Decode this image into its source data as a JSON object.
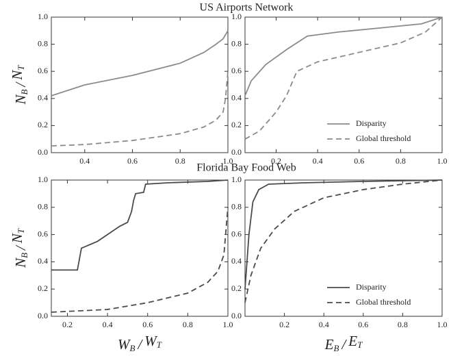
{
  "chart_data": [
    {
      "type": "line",
      "title": "US Airports Network",
      "ylabel": [
        "N",
        "B",
        "/",
        "N",
        "T"
      ],
      "xlim": [
        0.26,
        1.0
      ],
      "ylim": [
        0,
        1
      ],
      "xticks": [
        0.4,
        0.6,
        0.8,
        {
          "value": 1,
          "label": "1.0"
        }
      ],
      "yticks": [
        {
          "value": 0,
          "label": "0.0"
        },
        0.2,
        0.4,
        0.6,
        0.8,
        {
          "value": 1,
          "label": "1.0"
        }
      ],
      "series": [
        {
          "color": "#8a8a8a",
          "linestyle": "solid",
          "x": [
            0.26,
            0.4,
            0.6,
            0.8,
            0.9,
            0.95,
            0.98,
            1.0
          ],
          "values": [
            0.42,
            0.5,
            0.57,
            0.66,
            0.74,
            0.8,
            0.84,
            0.9
          ]
        },
        {
          "color": "#8a8a8a",
          "linestyle": "dashed",
          "x": [
            0.26,
            0.4,
            0.6,
            0.8,
            0.9,
            0.95,
            0.98,
            0.99,
            1.0
          ],
          "values": [
            0.05,
            0.06,
            0.09,
            0.14,
            0.19,
            0.24,
            0.3,
            0.4,
            0.6
          ]
        }
      ]
    },
    {
      "type": "line",
      "xlim": [
        0.05,
        1.0
      ],
      "ylim": [
        0,
        1
      ],
      "xticks": [
        0.2,
        0.4,
        0.6,
        0.8,
        {
          "value": 1,
          "label": "1.0"
        }
      ],
      "yticks": [
        {
          "value": 0,
          "label": "0.0"
        },
        0.2,
        0.4,
        0.6,
        0.8,
        {
          "value": 1,
          "label": "1.0"
        }
      ],
      "legend": "lower right",
      "series": [
        {
          "name": "Disparity",
          "color": "#8a8a8a",
          "linestyle": "solid",
          "x": [
            0.05,
            0.08,
            0.15,
            0.25,
            0.35,
            0.5,
            0.7,
            0.9,
            1.0
          ],
          "values": [
            0.42,
            0.53,
            0.65,
            0.76,
            0.86,
            0.89,
            0.92,
            0.95,
            1.0
          ]
        },
        {
          "name": "Global threshold",
          "color": "#8a8a8a",
          "linestyle": "dashed",
          "x": [
            0.05,
            0.12,
            0.2,
            0.25,
            0.3,
            0.4,
            0.6,
            0.8,
            0.92,
            1.0
          ],
          "values": [
            0.1,
            0.16,
            0.3,
            0.42,
            0.6,
            0.67,
            0.74,
            0.81,
            0.89,
            1.0
          ]
        }
      ]
    },
    {
      "type": "line",
      "title": "Florida Bay Food Web",
      "ylabel": [
        "N",
        "B",
        "/",
        "N",
        "T"
      ],
      "xlabel": [
        "W",
        "B",
        "/",
        "W",
        "T"
      ],
      "xlim": [
        0.12,
        1.0
      ],
      "ylim": [
        0,
        1
      ],
      "xticks": [
        0.2,
        0.4,
        0.6,
        0.8,
        {
          "value": 1,
          "label": "1.0"
        }
      ],
      "yticks": [
        {
          "value": 0,
          "label": "0.0"
        },
        0.2,
        0.4,
        0.6,
        0.8,
        {
          "value": 1,
          "label": "1.0"
        }
      ],
      "series": [
        {
          "color": "#4a4a4a",
          "linestyle": "solid",
          "x": [
            0.12,
            0.25,
            0.26,
            0.27,
            0.35,
            0.42,
            0.46,
            0.5,
            0.52,
            0.53,
            0.54,
            0.58,
            0.59,
            0.7,
            0.9,
            1.0
          ],
          "values": [
            0.34,
            0.34,
            0.42,
            0.5,
            0.55,
            0.62,
            0.66,
            0.69,
            0.77,
            0.85,
            0.9,
            0.91,
            0.97,
            0.98,
            0.99,
            1.0
          ]
        },
        {
          "color": "#4a4a4a",
          "linestyle": "dashed",
          "x": [
            0.12,
            0.4,
            0.6,
            0.8,
            0.9,
            0.95,
            0.98,
            1.0
          ],
          "values": [
            0.03,
            0.05,
            0.1,
            0.17,
            0.25,
            0.33,
            0.45,
            0.8
          ]
        }
      ]
    },
    {
      "type": "line",
      "xlabel": [
        "E",
        "B",
        "/",
        "E",
        "T"
      ],
      "xlim": [
        0,
        1.0
      ],
      "ylim": [
        0,
        1
      ],
      "xticks": [
        0.2,
        0.4,
        0.6,
        0.8,
        {
          "value": 1,
          "label": "1.0"
        }
      ],
      "yticks": [
        {
          "value": 0,
          "label": "0.0"
        },
        0.2,
        0.4,
        0.6,
        0.8,
        {
          "value": 1,
          "label": "1.0"
        }
      ],
      "legend": "lower right",
      "series": [
        {
          "name": "Disparity",
          "color": "#4a4a4a",
          "linestyle": "solid",
          "x": [
            0,
            0.02,
            0.04,
            0.07,
            0.12,
            0.3,
            0.6,
            1.0
          ],
          "values": [
            0.2,
            0.6,
            0.84,
            0.93,
            0.97,
            0.98,
            0.99,
            1.0
          ]
        },
        {
          "name": "Global threshold",
          "color": "#4a4a4a",
          "linestyle": "dashed",
          "x": [
            0,
            0.03,
            0.08,
            0.15,
            0.25,
            0.4,
            0.6,
            0.8,
            1.0
          ],
          "values": [
            0.1,
            0.3,
            0.5,
            0.64,
            0.77,
            0.87,
            0.93,
            0.97,
            1.0
          ]
        }
      ]
    }
  ]
}
